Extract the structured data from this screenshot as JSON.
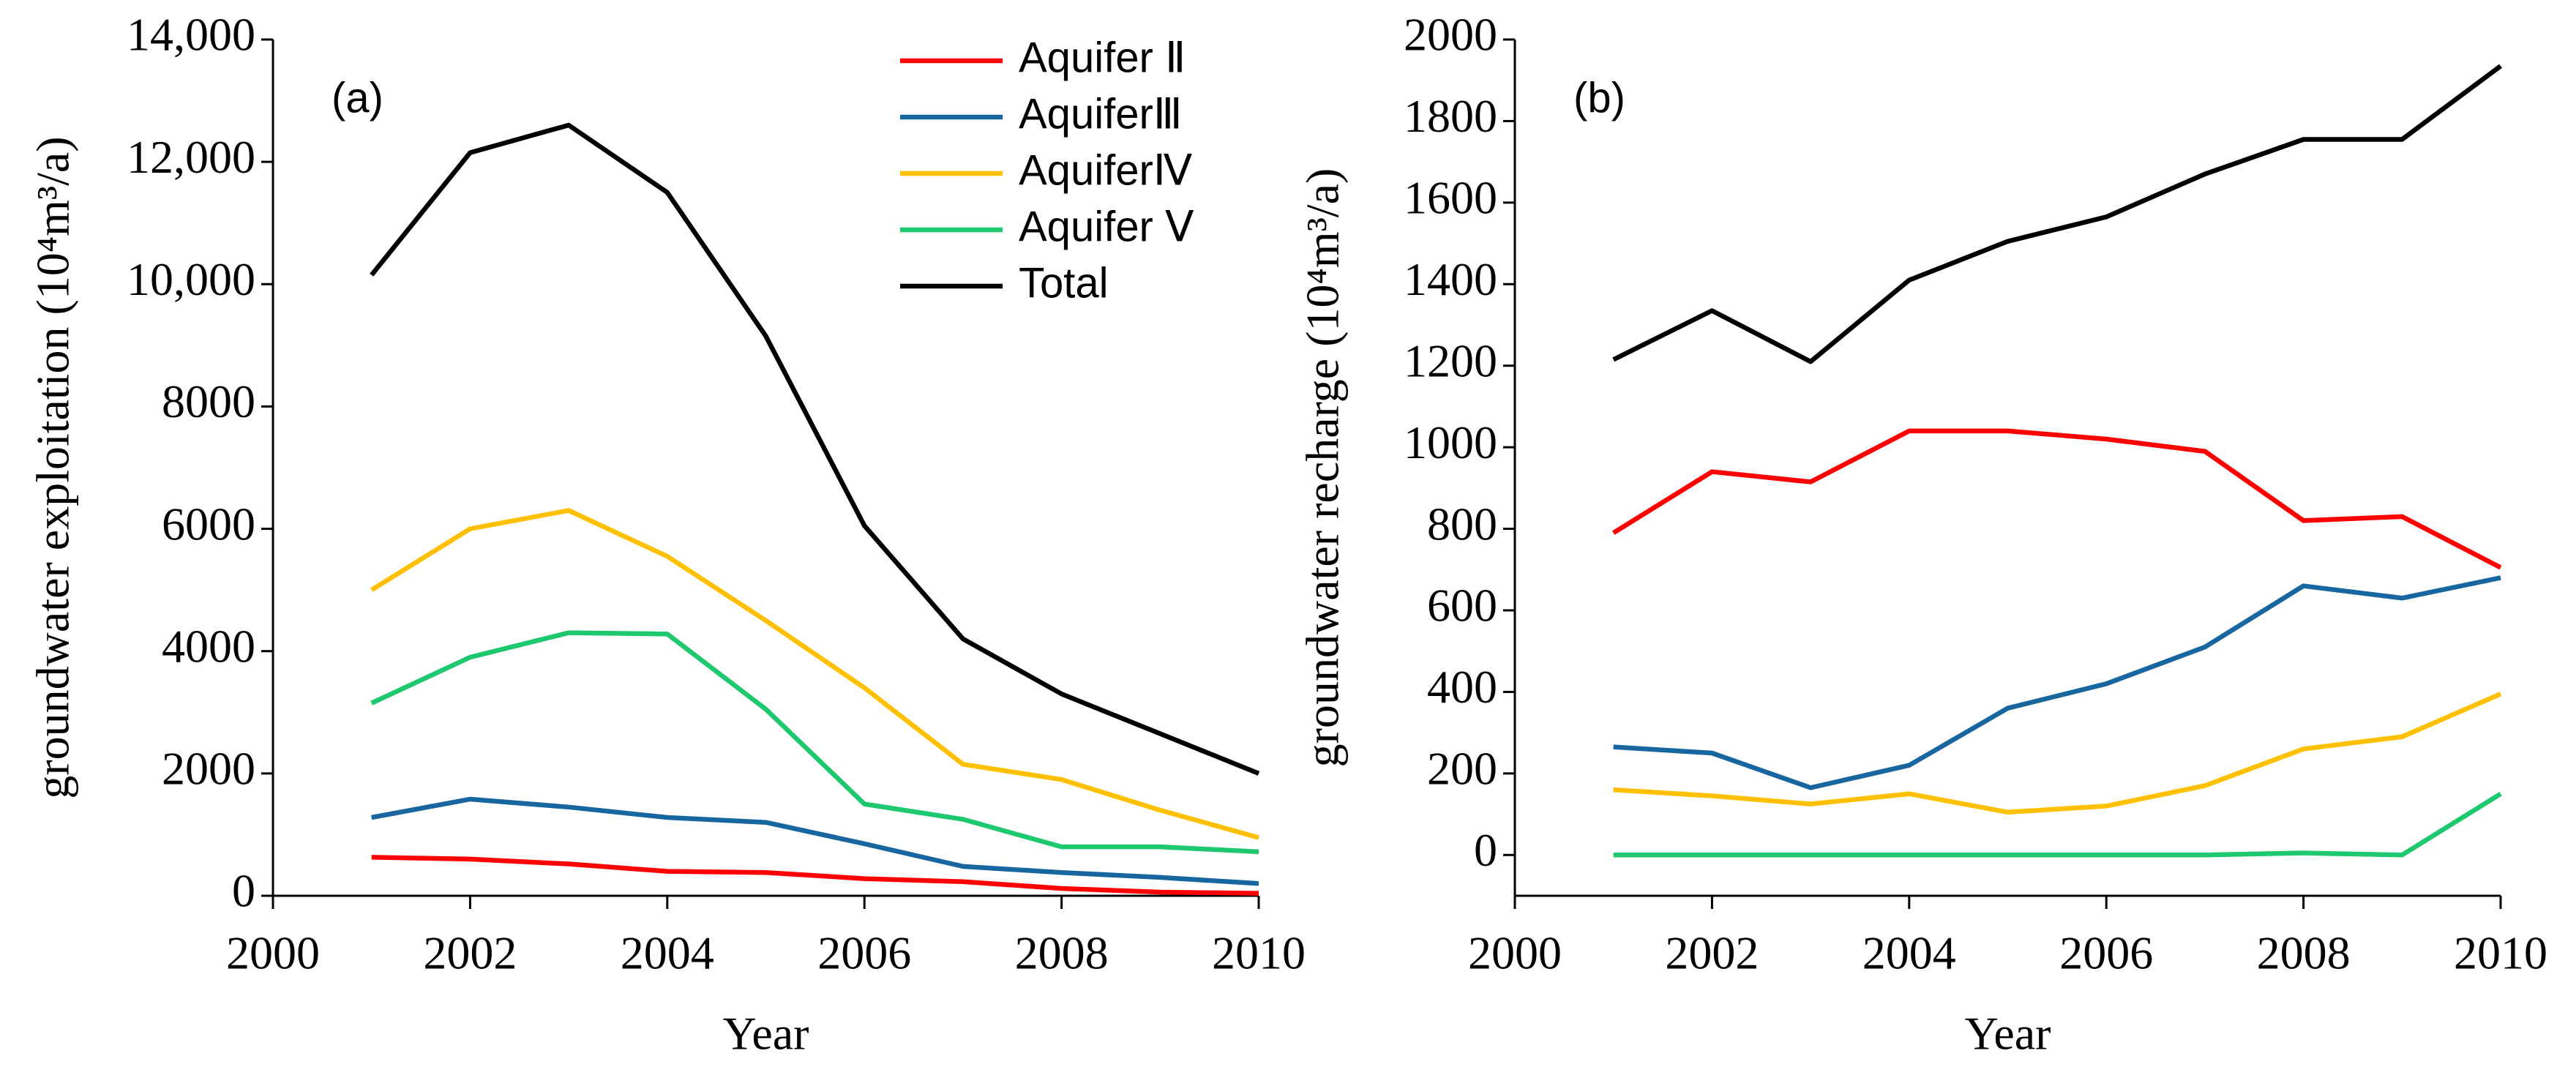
{
  "chart_data": [
    {
      "type": "line",
      "panel_label": "(a)",
      "xlabel": "Year",
      "ylabel": "groundwater exploitation (10⁴m³/a)",
      "x": [
        2001,
        2002,
        2003,
        2004,
        2005,
        2006,
        2007,
        2008,
        2009,
        2010
      ],
      "xlim": [
        2000,
        2010
      ],
      "xticks": [
        2000,
        2002,
        2004,
        2006,
        2008,
        2010
      ],
      "ylim": [
        0,
        14000
      ],
      "yticks": [
        0,
        2000,
        4000,
        6000,
        8000,
        {
          "value": 10000,
          "label": "10,000"
        },
        {
          "value": 12000,
          "label": "12,000"
        },
        {
          "value": 14000,
          "label": "14,000"
        }
      ],
      "legend": "upper right",
      "series": [
        {
          "name": "Aquifer Ⅱ",
          "color": "#ff0000",
          "values": [
            630,
            600,
            520,
            400,
            380,
            280,
            230,
            120,
            60,
            40
          ]
        },
        {
          "name": "AquiferⅢ",
          "color": "#1766a0",
          "values": [
            1280,
            1580,
            1450,
            1280,
            1200,
            850,
            480,
            380,
            300,
            200
          ]
        },
        {
          "name": "AquiferⅣ",
          "color": "#ffc000",
          "values": [
            5000,
            6000,
            6300,
            5550,
            4500,
            3400,
            2150,
            1900,
            1400,
            950
          ]
        },
        {
          "name": "Aquifer Ⅴ",
          "color": "#1ec86e",
          "values": [
            3150,
            3900,
            4300,
            4280,
            3050,
            1500,
            1250,
            800,
            800,
            720
          ]
        },
        {
          "name": "Total",
          "color": "#000000",
          "values": [
            10150,
            12150,
            12600,
            11500,
            9150,
            6050,
            4200,
            3300,
            2650,
            2000
          ]
        }
      ]
    },
    {
      "type": "line",
      "panel_label": "(b)",
      "xlabel": "Year",
      "ylabel": "groundwater  recharge (10⁴m³/a)",
      "x": [
        2001,
        2002,
        2003,
        2004,
        2005,
        2006,
        2007,
        2008,
        2009,
        2010
      ],
      "xlim": [
        2000,
        2010
      ],
      "xticks": [
        2000,
        2002,
        2004,
        2006,
        2008,
        2010
      ],
      "ylim": [
        -100,
        2000
      ],
      "yticks": [
        0,
        200,
        400,
        600,
        800,
        1000,
        1200,
        1400,
        1600,
        1800,
        2000
      ],
      "series": [
        {
          "color": "#ff0000",
          "values": [
            790,
            940,
            915,
            1040,
            1040,
            1020,
            990,
            820,
            830,
            705
          ]
        },
        {
          "color": "#1766a0",
          "values": [
            265,
            250,
            165,
            220,
            360,
            420,
            510,
            660,
            630,
            680
          ]
        },
        {
          "color": "#ffc000",
          "values": [
            160,
            145,
            125,
            150,
            105,
            120,
            170,
            260,
            290,
            395
          ]
        },
        {
          "color": "#1ec86e",
          "values": [
            0,
            0,
            0,
            0,
            0,
            0,
            0,
            5,
            0,
            150
          ]
        },
        {
          "color": "#000000",
          "values": [
            1215,
            1335,
            1210,
            1410,
            1505,
            1565,
            1670,
            1755,
            1755,
            1935
          ]
        }
      ]
    }
  ]
}
